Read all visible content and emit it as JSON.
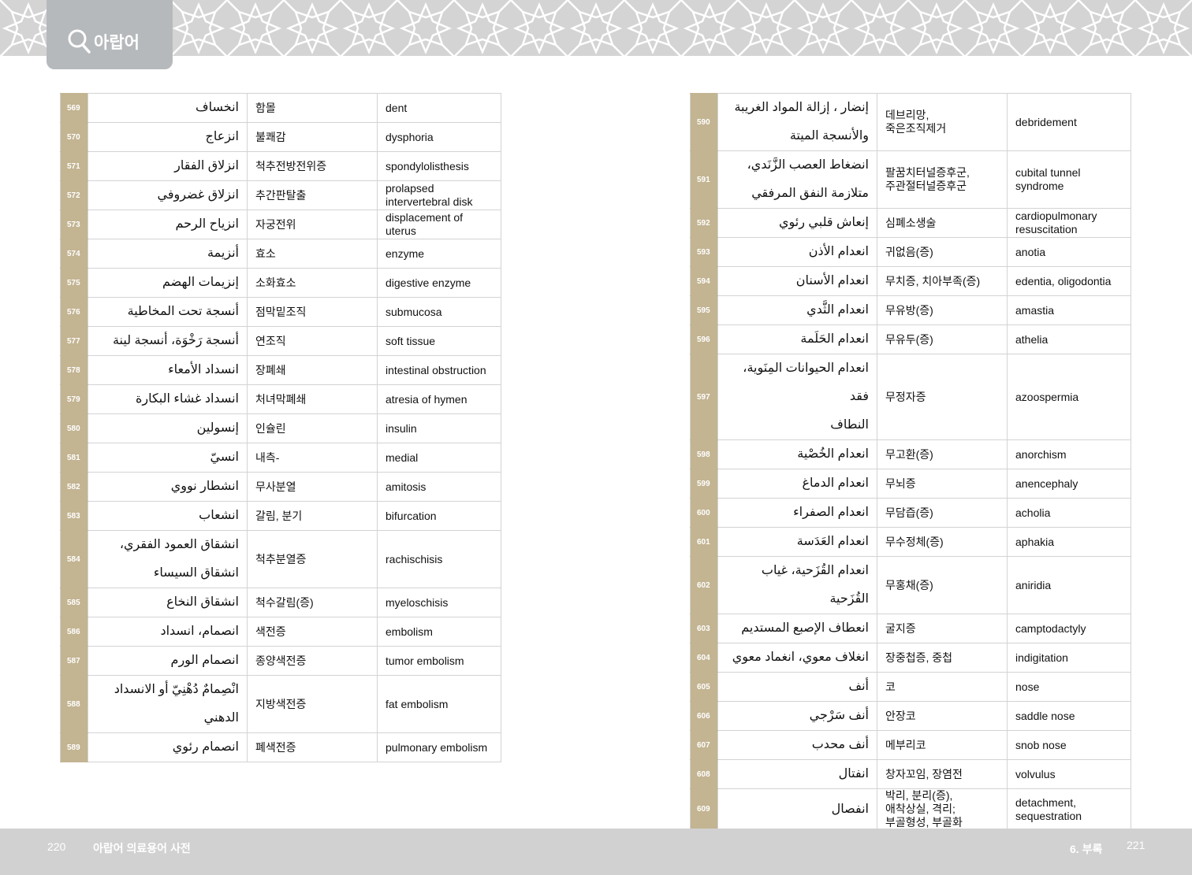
{
  "header": {
    "tab_label": "아랍어",
    "icon": "search-icon"
  },
  "colors": {
    "number_cell": "#c3b492",
    "tab": "#b6b9bc",
    "footer": "#d1d1d1"
  },
  "left_table": [
    {
      "n": "569",
      "ar": "انخساف",
      "ko": "함몰",
      "en": "dent"
    },
    {
      "n": "570",
      "ar": "انزعاج",
      "ko": "불쾌감",
      "en": "dysphoria"
    },
    {
      "n": "571",
      "ar": "انزلاق الفقار",
      "ko": "척추전방전위증",
      "en": "spondylolisthesis"
    },
    {
      "n": "572",
      "ar": "انزلاق غضروفي",
      "ko": "추간판탈출",
      "en": "prolapsed\nintervertebral disk"
    },
    {
      "n": "573",
      "ar": "انزياح الرحم",
      "ko": "자궁전위",
      "en": "displacement of\nuterus"
    },
    {
      "n": "574",
      "ar": "أنزيمة",
      "ko": "효소",
      "en": "enzyme"
    },
    {
      "n": "575",
      "ar": "إنزيمات الهضم",
      "ko": "소화효소",
      "en": "digestive enzyme"
    },
    {
      "n": "576",
      "ar": "أنسجة تحت المخاطية",
      "ko": "점막밑조직",
      "en": "submucosa"
    },
    {
      "n": "577",
      "ar": "أنسجة رَخْوَة، أنسجة لينة",
      "ko": "연조직",
      "en": "soft tissue"
    },
    {
      "n": "578",
      "ar": "انسداد الأمعاء",
      "ko": "장폐쇄",
      "en": "intestinal obstruction"
    },
    {
      "n": "579",
      "ar": "انسداد غشاء البكارة",
      "ko": "처녀막폐쇄",
      "en": "atresia of hymen"
    },
    {
      "n": "580",
      "ar": "إنسولين",
      "ko": "인슐린",
      "en": "insulin"
    },
    {
      "n": "581",
      "ar": "انسيّ",
      "ko": "내측-",
      "en": "medial"
    },
    {
      "n": "582",
      "ar": "انشطار نووي",
      "ko": "무사분열",
      "en": "amitosis"
    },
    {
      "n": "583",
      "ar": "انشعاب",
      "ko": "갈림, 분기",
      "en": "bifurcation"
    },
    {
      "n": "584",
      "ar": "انشقاق العمود الفقري،\nانشقاق السيساء",
      "ko": "척추분열증",
      "en": "rachischisis"
    },
    {
      "n": "585",
      "ar": "انشقاق النخاع",
      "ko": "척수갈림(증)",
      "en": "myeloschisis"
    },
    {
      "n": "586",
      "ar": "انصمام، انسداد",
      "ko": "색전증",
      "en": "embolism"
    },
    {
      "n": "587",
      "ar": "انصمام الورم",
      "ko": "종양색전증",
      "en": "tumor embolism"
    },
    {
      "n": "588",
      "ar": "انْصِمامٌ دُهْنِيّ أو الانسداد\nالدهني",
      "ko": "지방색전증",
      "en": "fat embolism"
    },
    {
      "n": "589",
      "ar": "انصمام رئوي",
      "ko": "폐색전증",
      "en": "pulmonary embolism"
    }
  ],
  "right_table": [
    {
      "n": "590",
      "ar": "إنضار ، إزالة المواد الغريبة\nوالأنسجة الميتة",
      "ko": "데브리망,\n죽은조직제거",
      "en": "debridement"
    },
    {
      "n": "591",
      "ar": "انضغاط العصب الزَّنَدي،\nمتلازمة النفق المرفقي",
      "ko": "팔꿈치터널증후군,\n주관절터널증후군",
      "en": "cubital tunnel\nsyndrome"
    },
    {
      "n": "592",
      "ar": "إنعاش قلبي رئوي",
      "ko": "심폐소생술",
      "en": "cardiopulmonary\nresuscitation"
    },
    {
      "n": "593",
      "ar": "انعدام الأذن",
      "ko": "귀없음(증)",
      "en": "anotia"
    },
    {
      "n": "594",
      "ar": "انعدام الأسنان",
      "ko": "무치증, 치아부족(증)",
      "en": "edentia, oligodontia"
    },
    {
      "n": "595",
      "ar": "انعدام الثَّدي",
      "ko": "무유방(증)",
      "en": "amastia"
    },
    {
      "n": "596",
      "ar": "انعدام الحَلَمة",
      "ko": "무유두(증)",
      "en": "athelia"
    },
    {
      "n": "597",
      "ar": "انعدام الحيوانات المِنَوية، فقد\nالنطاف",
      "ko": "무정자증",
      "en": "azoospermia"
    },
    {
      "n": "598",
      "ar": "انعدام الخُصْية",
      "ko": "무고환(증)",
      "en": "anorchism"
    },
    {
      "n": "599",
      "ar": "انعدام الدماغ",
      "ko": "무뇌증",
      "en": "anencephaly"
    },
    {
      "n": "600",
      "ar": "انعدام الصفراء",
      "ko": "무담즙(증)",
      "en": "acholia"
    },
    {
      "n": "601",
      "ar": "انعدام العَدَسة",
      "ko": "무수정체(증)",
      "en": "aphakia"
    },
    {
      "n": "602",
      "ar": "انعدام القُزَحية، غياب القُزَحية",
      "ko": "무홍채(증)",
      "en": "aniridia",
      "tall": true
    },
    {
      "n": "603",
      "ar": "انعطاف الإصبع المستديم",
      "ko": "굴지증",
      "en": "camptodactyly"
    },
    {
      "n": "604",
      "ar": "انغلاف معوي، انغماد معوي",
      "ko": "장중첩증, 중첩",
      "en": "indigitation"
    },
    {
      "n": "605",
      "ar": "أنف",
      "ko": "코",
      "en": "nose"
    },
    {
      "n": "606",
      "ar": "أنف سَرْجي",
      "ko": "안장코",
      "en": "saddle nose"
    },
    {
      "n": "607",
      "ar": "أنف محدب",
      "ko": "메부리코",
      "en": "snob nose"
    },
    {
      "n": "608",
      "ar": "انفتال",
      "ko": "창자꼬임, 장염전",
      "en": "volvulus"
    },
    {
      "n": "609",
      "ar": "انفصال",
      "ko": "박리, 분리(증),\n애착상실, 격리;\n부골형성, 부골화",
      "en": "detachment,\nsequestration"
    }
  ],
  "footer": {
    "left_page": "220",
    "left_title": "아랍어 의료용어 사전",
    "right_title": "6. 부록",
    "right_page": "221"
  }
}
